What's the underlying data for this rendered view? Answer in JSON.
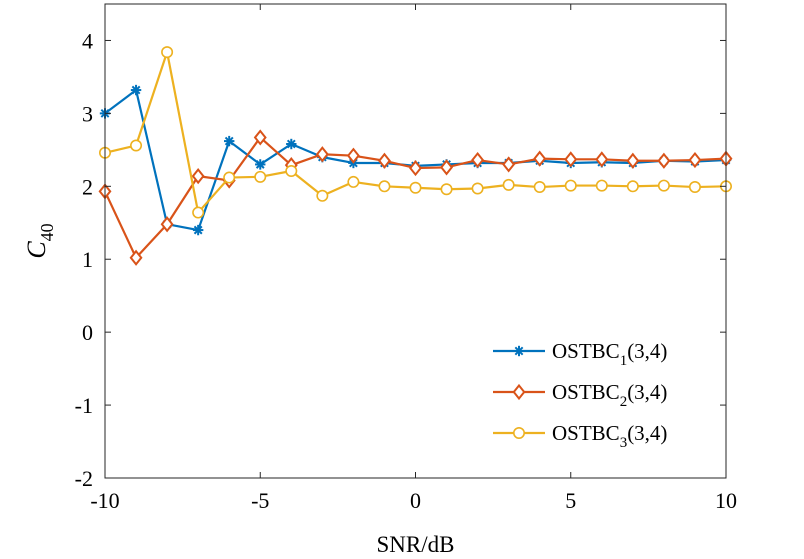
{
  "chart_data": {
    "type": "line",
    "xlabel": "SNR/dB",
    "ylabel": {
      "main": "C",
      "sub": "40"
    },
    "xlim": [
      -10,
      10
    ],
    "ylim": [
      -2,
      4.5
    ],
    "xticks": [
      -10,
      -5,
      0,
      5,
      10
    ],
    "yticks": [
      -2,
      -1,
      0,
      1,
      2,
      3,
      4
    ],
    "xtick_labels": [
      "-10",
      "-5",
      "0",
      "5",
      "10"
    ],
    "ytick_labels": [
      "-2",
      "-1",
      "0",
      "1",
      "2",
      "3",
      "4"
    ],
    "grid": false,
    "legend_position": "bottom-right",
    "x": [
      -10,
      -9,
      -8,
      -7,
      -6,
      -5,
      -4,
      -3,
      -2,
      -1,
      0,
      1,
      2,
      3,
      4,
      5,
      6,
      7,
      8,
      9,
      10
    ],
    "series": [
      {
        "name": {
          "main": "OSTBC",
          "sub": "1",
          "suffix": "(3,4)"
        },
        "color": "#0072BD",
        "marker": "asterisk",
        "values": [
          3.0,
          3.32,
          1.48,
          1.4,
          2.62,
          2.3,
          2.58,
          2.4,
          2.32,
          2.32,
          2.28,
          2.3,
          2.32,
          2.32,
          2.35,
          2.32,
          2.33,
          2.32,
          2.35,
          2.34,
          2.36
        ]
      },
      {
        "name": {
          "main": "OSTBC",
          "sub": "2",
          "suffix": "(3,4)"
        },
        "color": "#D95319",
        "marker": "diamond",
        "values": [
          1.93,
          1.02,
          1.48,
          2.14,
          2.08,
          2.67,
          2.29,
          2.44,
          2.42,
          2.35,
          2.25,
          2.26,
          2.36,
          2.3,
          2.38,
          2.37,
          2.37,
          2.35,
          2.35,
          2.36,
          2.38
        ]
      },
      {
        "name": {
          "main": "OSTBC",
          "sub": "3",
          "suffix": "(3,4)"
        },
        "color": "#EDB120",
        "marker": "circle",
        "values": [
          2.46,
          2.56,
          3.84,
          1.64,
          2.12,
          2.13,
          2.21,
          1.87,
          2.06,
          2.0,
          1.98,
          1.96,
          1.97,
          2.02,
          1.99,
          2.01,
          2.01,
          2.0,
          2.01,
          1.99,
          2.0
        ]
      }
    ]
  }
}
